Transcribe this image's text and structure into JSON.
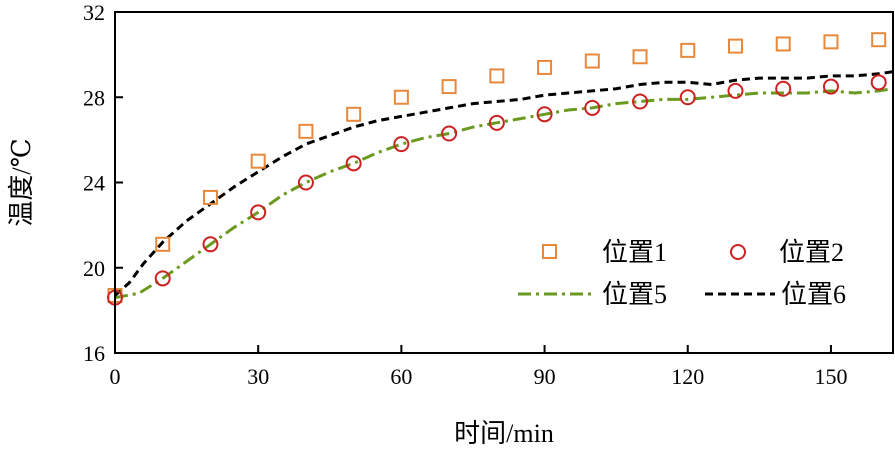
{
  "chart_data": {
    "type": "line",
    "title": "",
    "xlabel": "时间/min",
    "ylabel": "温度/℃",
    "xlim": [
      0,
      163
    ],
    "ylim": [
      16,
      32
    ],
    "xticks": [
      0,
      30,
      60,
      90,
      120,
      150
    ],
    "yticks": [
      16,
      20,
      24,
      28,
      32
    ],
    "xtick_labels": [
      "0",
      "30",
      "60",
      "90",
      "120",
      "150"
    ],
    "ytick_labels": [
      "16",
      "20",
      "24",
      "28",
      "32"
    ],
    "grid": false,
    "legend_position": "lower-right",
    "series": [
      {
        "name": "位置1",
        "style": "square-marker",
        "color": "#e8883a",
        "x": [
          0,
          10,
          20,
          30,
          40,
          50,
          60,
          70,
          80,
          90,
          100,
          110,
          120,
          130,
          140,
          150,
          160
        ],
        "y": [
          18.7,
          21.1,
          23.3,
          25.0,
          26.4,
          27.2,
          28.0,
          28.5,
          29.0,
          29.4,
          29.7,
          29.9,
          30.2,
          30.4,
          30.5,
          30.6,
          30.7
        ]
      },
      {
        "name": "位置2",
        "style": "circle-marker",
        "color": "#cc2222",
        "x": [
          0,
          10,
          20,
          30,
          40,
          50,
          60,
          70,
          80,
          90,
          100,
          110,
          120,
          130,
          140,
          150,
          160
        ],
        "y": [
          18.6,
          19.5,
          21.1,
          22.6,
          24.0,
          24.9,
          25.8,
          26.3,
          26.8,
          27.2,
          27.5,
          27.8,
          28.0,
          28.3,
          28.4,
          28.5,
          28.7
        ]
      },
      {
        "name": "位置5",
        "style": "dash-dot-line",
        "color": "#6a9a1f",
        "x": [
          0,
          5,
          10,
          15,
          20,
          25,
          30,
          35,
          40,
          45,
          50,
          55,
          60,
          65,
          70,
          75,
          80,
          85,
          90,
          95,
          100,
          105,
          110,
          115,
          120,
          125,
          130,
          135,
          140,
          145,
          150,
          155,
          160,
          163
        ],
        "y": [
          18.6,
          18.8,
          19.5,
          20.3,
          21.1,
          21.9,
          22.6,
          23.4,
          24.0,
          24.5,
          24.9,
          25.4,
          25.8,
          26.1,
          26.3,
          26.6,
          26.8,
          27.0,
          27.2,
          27.4,
          27.5,
          27.7,
          27.8,
          27.9,
          27.9,
          28.0,
          28.1,
          28.2,
          28.2,
          28.2,
          28.3,
          28.2,
          28.3,
          28.4
        ]
      },
      {
        "name": "位置6",
        "style": "dashed-line",
        "color": "#000000",
        "x": [
          0,
          3,
          6,
          10,
          15,
          20,
          25,
          30,
          35,
          40,
          45,
          50,
          55,
          60,
          65,
          70,
          75,
          80,
          85,
          90,
          95,
          100,
          105,
          110,
          115,
          120,
          125,
          130,
          135,
          140,
          145,
          150,
          155,
          160,
          163
        ],
        "y": [
          18.7,
          19.3,
          20.2,
          21.2,
          22.2,
          23.0,
          23.8,
          24.5,
          25.2,
          25.8,
          26.2,
          26.6,
          26.9,
          27.1,
          27.3,
          27.5,
          27.7,
          27.8,
          27.9,
          28.1,
          28.2,
          28.3,
          28.4,
          28.6,
          28.7,
          28.7,
          28.6,
          28.8,
          28.9,
          28.9,
          28.9,
          29.0,
          29.0,
          29.1,
          29.2
        ]
      }
    ]
  }
}
